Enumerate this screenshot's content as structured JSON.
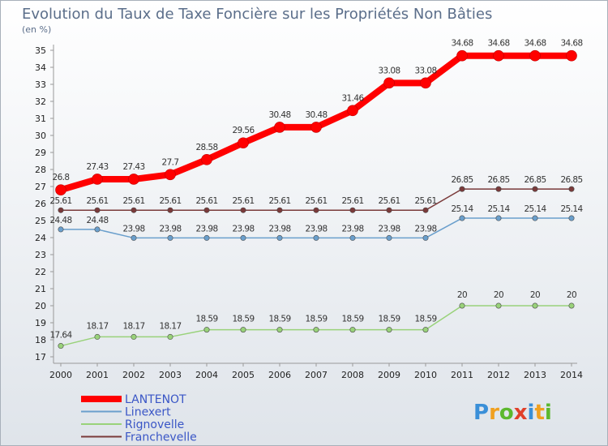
{
  "title": "Evolution du Taux de Taxe Foncière sur les Propriétés Non Bâties",
  "subtitle": "(en %)",
  "colors": {
    "background_top": "#ffffff",
    "background_bottom": "#dfe4ea",
    "title": "#5b6e8a",
    "legend_text": "#3a56c6"
  },
  "chart_data": {
    "type": "line",
    "x": [
      "2000",
      "2001",
      "2002",
      "2003",
      "2004",
      "2005",
      "2006",
      "2007",
      "2008",
      "2009",
      "2010",
      "2011",
      "2012",
      "2013",
      "2014"
    ],
    "ylim": [
      17,
      35
    ],
    "yticks": [
      17,
      18,
      19,
      20,
      21,
      22,
      23,
      24,
      25,
      26,
      27,
      28,
      29,
      30,
      31,
      32,
      33,
      34,
      35
    ],
    "grid": false,
    "legend_position": "bottom-left",
    "series": [
      {
        "name": "LANTENOT",
        "color": "#ff0000",
        "values": [
          26.8,
          27.43,
          27.43,
          27.7,
          28.58,
          29.56,
          30.48,
          30.48,
          31.46,
          33.08,
          33.08,
          34.68,
          34.68,
          34.68,
          34.68
        ],
        "labels": [
          "26.8",
          "27.43",
          "27.43",
          "27.7",
          "28.58",
          "29.56",
          "30.48",
          "30.48",
          "31.46",
          "33.08",
          "33.08",
          "34.68",
          "34.68",
          "34.68",
          "34.68"
        ]
      },
      {
        "name": "Linexert",
        "color": "#6a9fcc",
        "values": [
          24.48,
          24.48,
          23.98,
          23.98,
          23.98,
          23.98,
          23.98,
          23.98,
          23.98,
          23.98,
          23.98,
          25.14,
          25.14,
          25.14,
          25.14
        ],
        "labels": [
          "24.48",
          "24.48",
          "23.98",
          "23.98",
          "23.98",
          "23.98",
          "23.98",
          "23.98",
          "23.98",
          "23.98",
          "23.98",
          "25.14",
          "25.14",
          "25.14",
          "25.14"
        ]
      },
      {
        "name": "Rignovelle",
        "color": "#99d27a",
        "values": [
          17.64,
          18.17,
          18.17,
          18.17,
          18.59,
          18.59,
          18.59,
          18.59,
          18.59,
          18.59,
          18.59,
          20,
          20,
          20,
          20
        ],
        "labels": [
          "17.64",
          "18.17",
          "18.17",
          "18.17",
          "18.59",
          "18.59",
          "18.59",
          "18.59",
          "18.59",
          "18.59",
          "18.59",
          "20",
          "20",
          "20",
          "20"
        ]
      },
      {
        "name": "Franchevelle",
        "color": "#7a3a3a",
        "values": [
          25.61,
          25.61,
          25.61,
          25.61,
          25.61,
          25.61,
          25.61,
          25.61,
          25.61,
          25.61,
          25.61,
          26.85,
          26.85,
          26.85,
          26.85
        ],
        "labels": [
          "25.61",
          "25.61",
          "25.61",
          "25.61",
          "25.61",
          "25.61",
          "25.61",
          "25.61",
          "25.61",
          "25.61",
          "25.61",
          "26.85",
          "26.85",
          "26.85",
          "26.85"
        ]
      }
    ]
  },
  "logo": {
    "letters": [
      "P",
      "r",
      "o",
      "x",
      "i",
      "t",
      "i"
    ],
    "colors": [
      "#3a8fd8",
      "#f0a020",
      "#5cb82e",
      "#e0402a",
      "#3a8fd8",
      "#f0a020",
      "#5cb82e"
    ]
  }
}
